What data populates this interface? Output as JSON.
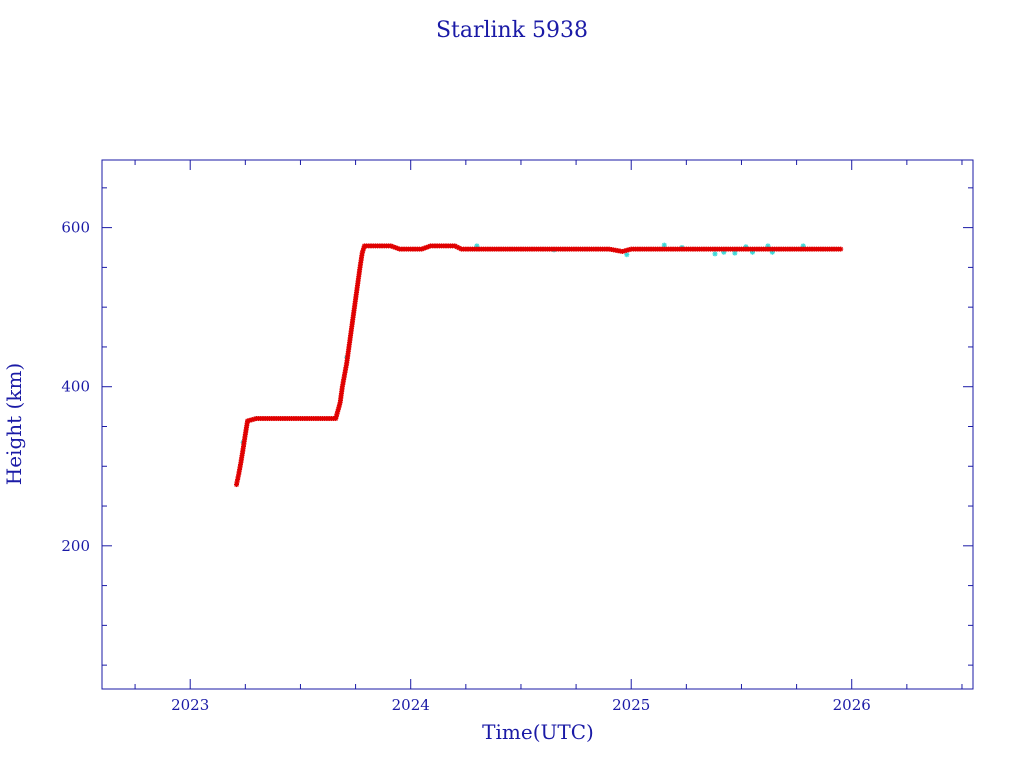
{
  "chart_data": {
    "type": "scatter",
    "title": "Starlink 5938",
    "xlabel": "Time(UTC)",
    "ylabel": "Height (km)",
    "xlim": [
      2022.6,
      2026.55
    ],
    "ylim": [
      20,
      685
    ],
    "x_ticks": [
      2023,
      2024,
      2025,
      2026
    ],
    "x_tick_labels": [
      "2023",
      "2024",
      "2025",
      "2026"
    ],
    "y_ticks": [
      200,
      400,
      600
    ],
    "y_tick_labels": [
      "200",
      "400",
      "600"
    ],
    "grid": false,
    "colors": {
      "text": "#1a1aa6",
      "axes": "#1a1aa6",
      "primary_series": "#e00000",
      "secondary_series": "#3fd8d8"
    },
    "series": [
      {
        "marker": "star",
        "color": "#e00000",
        "points": [
          [
            2023.21,
            277
          ],
          [
            2023.22,
            290
          ],
          [
            2023.23,
            305
          ],
          [
            2023.24,
            322
          ],
          [
            2023.25,
            340
          ],
          [
            2023.26,
            357
          ],
          [
            2023.3,
            360
          ],
          [
            2023.36,
            360
          ],
          [
            2023.42,
            360
          ],
          [
            2023.48,
            360
          ],
          [
            2023.54,
            360
          ],
          [
            2023.6,
            360
          ],
          [
            2023.66,
            360
          ],
          [
            2023.68,
            380
          ],
          [
            2023.69,
            400
          ],
          [
            2023.7,
            415
          ],
          [
            2023.71,
            430
          ],
          [
            2023.72,
            450
          ],
          [
            2023.73,
            470
          ],
          [
            2023.74,
            490
          ],
          [
            2023.75,
            510
          ],
          [
            2023.76,
            530
          ],
          [
            2023.77,
            550
          ],
          [
            2023.78,
            568
          ],
          [
            2023.79,
            577
          ],
          [
            2023.85,
            577
          ],
          [
            2023.91,
            577
          ],
          [
            2023.95,
            573
          ],
          [
            2024.0,
            573
          ],
          [
            2024.05,
            573
          ],
          [
            2024.09,
            577
          ],
          [
            2024.14,
            577
          ],
          [
            2024.2,
            577
          ],
          [
            2024.23,
            573
          ],
          [
            2024.3,
            573
          ],
          [
            2024.4,
            573
          ],
          [
            2024.5,
            573
          ],
          [
            2024.6,
            573
          ],
          [
            2024.7,
            573
          ],
          [
            2024.8,
            573
          ],
          [
            2024.9,
            573
          ],
          [
            2024.96,
            570
          ],
          [
            2025.0,
            573
          ],
          [
            2025.1,
            573
          ],
          [
            2025.2,
            573
          ],
          [
            2025.3,
            573
          ],
          [
            2025.4,
            573
          ],
          [
            2025.5,
            573
          ],
          [
            2025.6,
            573
          ],
          [
            2025.7,
            573
          ],
          [
            2025.8,
            573
          ],
          [
            2025.9,
            573
          ],
          [
            2025.95,
            573
          ]
        ]
      },
      {
        "marker": "star",
        "color": "#3fd8d8",
        "points": [
          [
            2023.24,
            330
          ],
          [
            2023.71,
            437
          ],
          [
            2023.3,
            360
          ],
          [
            2024.3,
            577
          ],
          [
            2024.65,
            572
          ],
          [
            2024.98,
            566
          ],
          [
            2025.15,
            578
          ],
          [
            2025.23,
            575
          ],
          [
            2025.38,
            567
          ],
          [
            2025.42,
            569
          ],
          [
            2025.47,
            568
          ],
          [
            2025.52,
            576
          ],
          [
            2025.55,
            569
          ],
          [
            2025.62,
            577
          ],
          [
            2025.64,
            569
          ],
          [
            2025.78,
            577
          ]
        ]
      }
    ]
  }
}
